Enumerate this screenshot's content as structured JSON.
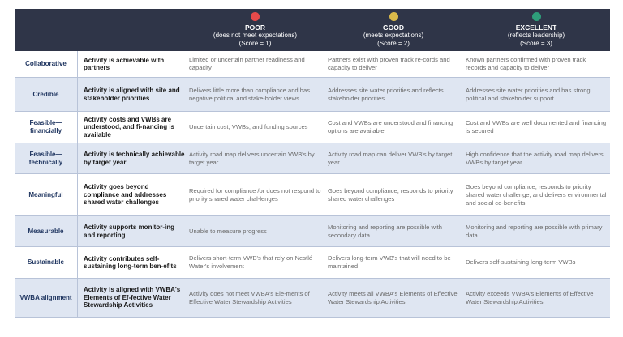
{
  "header": {
    "levels": [
      {
        "name": "POOR",
        "sub": "(does not meet expectations)",
        "score": "(Score = 1)",
        "color": "#e64a4a"
      },
      {
        "name": "GOOD",
        "sub": "(meets expectations)",
        "score": "(Score = 2)",
        "color": "#d9b94a"
      },
      {
        "name": "EXCELLENT",
        "sub": "(reflects leadership)",
        "score": "(Score = 3)",
        "color": "#2e9e7a"
      }
    ]
  },
  "rows": [
    {
      "name": "Collaborative",
      "criterion": "Activity is achievable with partners",
      "poor": "Limited or uncertain partner readiness and capacity",
      "good": "Partners exist with proven track re-cords and capacity to deliver",
      "excellent": "Known partners confirmed with proven track records and capacity to deliver"
    },
    {
      "name": "Credible",
      "criterion": "Activity is aligned with site and stakeholder priorities",
      "poor": "Delivers little more than compliance and has negative political and stake-holder views",
      "good": "Addresses site water priorities and reflects stakeholder priorities",
      "excellent": "Addresses site water priorities and has strong political and stakeholder support"
    },
    {
      "name": "Feasible—financially",
      "criterion": "Activity costs and VWBs are understood, and fi-nancing is available",
      "poor": "Uncertain cost, VWBs, and funding sources",
      "good": "Cost and VWBs are understood and financing options are available",
      "excellent": "Cost and VWBs are well documented and financing is secured"
    },
    {
      "name": "Feasible—technically",
      "criterion": "Activity is technically achievable by target year",
      "poor": "Activity road map delivers uncertain VWB's by target year",
      "good": "Activity road map can deliver VWB's by target year",
      "excellent": "High confidence that the activity road map delivers VWBs by target year"
    },
    {
      "name": "Meaningful",
      "criterion": "Activity goes beyond compliance and addresses shared water challenges",
      "poor": "Required for compliance /or does not respond to priority shared water chal-lenges",
      "good": "Goes beyond compliance, responds to priority shared water challenges",
      "excellent": "Goes beyond compliance, responds to priority shared water challenge, and delivers environmental and social co-benefits"
    },
    {
      "name": "Measurable",
      "criterion": "Activity supports monitor-ing and reporting",
      "poor": "Unable to measure progress",
      "good": "Monitoring and reporting are possible with secondary data",
      "excellent": "Monitoring and reporting are possible with primary data"
    },
    {
      "name": "Sustainable",
      "criterion": "Activity contributes self-sustaining long-term ben-efits",
      "poor": "Delivers short-term VWB's that rely on Nestlé Water's involvement",
      "good": "Delivers long-term VWB's that will need to be maintained",
      "excellent": "Delivers self-sustaining long-term VWBs"
    },
    {
      "name": "VWBA alignment",
      "criterion": "Activity is aligned with VWBA's Elements of Ef-fective Water Stewardship Activities",
      "poor": "Activity does not meet VWBA's Ele-ments of Effective Water Stewardship Activities",
      "good": "Activity meets all VWBA's Elements of Effective Water Stewardship Activities",
      "excellent": "Activity exceeds VWBA's Elements of Effective Water Stewardship Activities"
    }
  ]
}
